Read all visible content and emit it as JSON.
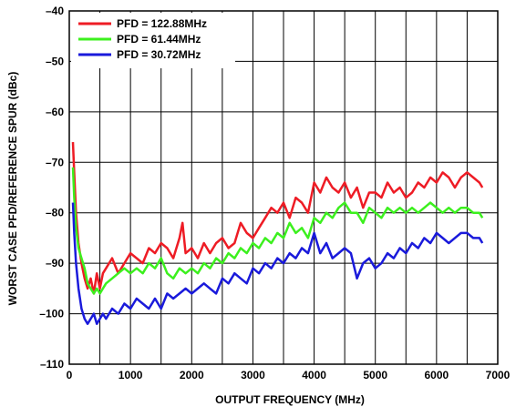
{
  "chart_data": {
    "type": "line",
    "title": "",
    "xlabel": "OUTPUT FREQUENCY (MHz)",
    "ylabel": "WORST CASE PFD/REFERENCE SPUR (dBc)",
    "xlim": [
      0,
      7000
    ],
    "ylim": [
      -110,
      -40
    ],
    "xticks": [
      0,
      1000,
      2000,
      3000,
      4000,
      5000,
      6000,
      7000
    ],
    "yticks": [
      -110,
      -100,
      -90,
      -80,
      -70,
      -60,
      -50,
      -40
    ],
    "grid": true,
    "legend_position": "top-left",
    "series": [
      {
        "name": "PFD = 122.88MHz",
        "color": "#ee1c25",
        "x": [
          60,
          80,
          110,
          150,
          200,
          250,
          300,
          350,
          400,
          450,
          500,
          550,
          600,
          700,
          800,
          900,
          1000,
          1100,
          1200,
          1300,
          1400,
          1500,
          1600,
          1700,
          1800,
          1850,
          1900,
          2000,
          2100,
          2200,
          2300,
          2400,
          2500,
          2600,
          2700,
          2800,
          2900,
          3000,
          3100,
          3200,
          3300,
          3400,
          3500,
          3600,
          3700,
          3800,
          3900,
          4000,
          4100,
          4200,
          4300,
          4400,
          4500,
          4600,
          4700,
          4800,
          4900,
          5000,
          5100,
          5200,
          5300,
          5400,
          5500,
          5600,
          5700,
          5800,
          5900,
          6000,
          6100,
          6200,
          6300,
          6400,
          6500,
          6600,
          6700,
          6750
        ],
        "values": [
          -66,
          -72,
          -80,
          -86,
          -90,
          -93,
          -95,
          -93,
          -96,
          -92,
          -95,
          -92,
          -91,
          -89,
          -92,
          -90,
          -88,
          -89,
          -90,
          -87,
          -88,
          -86,
          -87,
          -89,
          -85,
          -82,
          -88,
          -87,
          -89,
          -86,
          -88,
          -86,
          -85,
          -87,
          -86,
          -82,
          -84,
          -85,
          -83,
          -81,
          -79,
          -80,
          -78,
          -81,
          -77,
          -78,
          -80,
          -74,
          -76,
          -73,
          -75,
          -76,
          -74,
          -77,
          -75,
          -79,
          -76,
          -76,
          -77,
          -74,
          -76,
          -75,
          -77,
          -76,
          -74,
          -75,
          -73,
          -74,
          -72,
          -73,
          -75,
          -73,
          -72,
          -73,
          -74,
          -75
        ]
      },
      {
        "name": "PFD = 61.44MHz",
        "color": "#3cf01e",
        "x": [
          60,
          80,
          110,
          150,
          200,
          250,
          300,
          350,
          400,
          450,
          500,
          550,
          600,
          700,
          800,
          900,
          1000,
          1100,
          1200,
          1300,
          1400,
          1500,
          1600,
          1700,
          1800,
          1900,
          2000,
          2100,
          2200,
          2300,
          2400,
          2500,
          2600,
          2700,
          2800,
          2900,
          3000,
          3100,
          3200,
          3300,
          3400,
          3500,
          3600,
          3700,
          3800,
          3900,
          4000,
          4100,
          4200,
          4300,
          4400,
          4500,
          4600,
          4700,
          4800,
          4900,
          5000,
          5100,
          5200,
          5300,
          5400,
          5500,
          5600,
          5700,
          5800,
          5900,
          6000,
          6100,
          6200,
          6300,
          6400,
          6500,
          6600,
          6700,
          6750
        ],
        "values": [
          -71,
          -77,
          -83,
          -87,
          -89,
          -91,
          -94,
          -95,
          -96,
          -95,
          -96,
          -95,
          -94,
          -93,
          -92,
          -91,
          -92,
          -91,
          -92,
          -90,
          -91,
          -89,
          -92,
          -93,
          -91,
          -92,
          -91,
          -92,
          -90,
          -91,
          -89,
          -90,
          -88,
          -89,
          -87,
          -88,
          -86,
          -87,
          -85,
          -86,
          -84,
          -85,
          -82,
          -84,
          -83,
          -85,
          -81,
          -82,
          -80,
          -81,
          -79,
          -78,
          -80,
          -80,
          -82,
          -79,
          -80,
          -81,
          -79,
          -80,
          -79,
          -80,
          -79,
          -80,
          -79,
          -78,
          -79,
          -80,
          -79,
          -80,
          -79,
          -79,
          -80,
          -80,
          -81
        ]
      },
      {
        "name": "PFD = 30.72MHz",
        "color": "#1a1adb",
        "x": [
          60,
          80,
          110,
          150,
          200,
          250,
          300,
          350,
          400,
          450,
          500,
          550,
          600,
          700,
          800,
          900,
          1000,
          1100,
          1200,
          1300,
          1400,
          1500,
          1600,
          1700,
          1800,
          1900,
          2000,
          2100,
          2200,
          2300,
          2400,
          2500,
          2600,
          2700,
          2800,
          2900,
          3000,
          3100,
          3200,
          3300,
          3400,
          3500,
          3600,
          3700,
          3800,
          3900,
          4000,
          4100,
          4200,
          4300,
          4400,
          4500,
          4600,
          4700,
          4800,
          4900,
          5000,
          5100,
          5200,
          5300,
          5400,
          5500,
          5600,
          5700,
          5800,
          5900,
          6000,
          6100,
          6200,
          6300,
          6400,
          6500,
          6600,
          6700,
          6750
        ],
        "values": [
          -78,
          -84,
          -90,
          -95,
          -99,
          -101,
          -102,
          -101,
          -100,
          -102,
          -101,
          -100,
          -101,
          -99,
          -100,
          -98,
          -99,
          -97,
          -98,
          -99,
          -97,
          -99,
          -96,
          -97,
          -96,
          -95,
          -96,
          -95,
          -94,
          -95,
          -96,
          -93,
          -94,
          -92,
          -93,
          -94,
          -91,
          -92,
          -90,
          -91,
          -89,
          -90,
          -88,
          -89,
          -87,
          -88,
          -84,
          -88,
          -86,
          -89,
          -88,
          -87,
          -88,
          -93,
          -90,
          -89,
          -91,
          -90,
          -88,
          -89,
          -87,
          -88,
          -86,
          -87,
          -85,
          -86,
          -84,
          -85,
          -86,
          -85,
          -84,
          -84,
          -85,
          -85,
          -86
        ]
      }
    ]
  }
}
